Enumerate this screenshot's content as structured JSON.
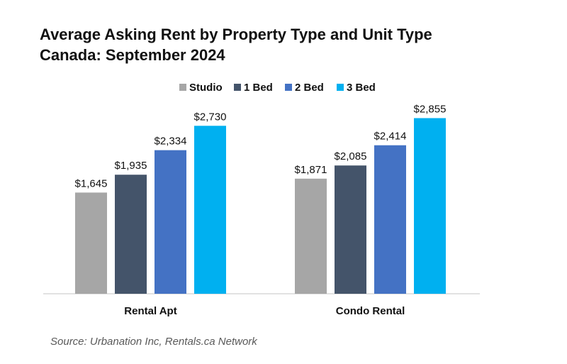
{
  "chart_data": {
    "type": "bar",
    "title": "Average Asking Rent by Property Type and Unit Type",
    "subtitle": "Canada: September 2024",
    "categories": [
      "Rental Apt",
      "Condo Rental"
    ],
    "series": [
      {
        "name": "Studio",
        "color": "#A6A6A6",
        "values": [
          1645,
          1871
        ],
        "labels": [
          "$1,645",
          "$1,871"
        ]
      },
      {
        "name": "1 Bed",
        "color": "#44546A",
        "values": [
          1935,
          2085
        ],
        "labels": [
          "$1,935",
          "$2,085"
        ]
      },
      {
        "name": "2 Bed",
        "color": "#4472C4",
        "values": [
          2334,
          2414
        ],
        "labels": [
          "$2,334",
          "$2,414"
        ]
      },
      {
        "name": "3 Bed",
        "color": "#00B0F0",
        "values": [
          2730,
          2855
        ],
        "labels": [
          "$2,730",
          "$2,855"
        ]
      }
    ],
    "ylim": [
      0,
      3000
    ],
    "xlabel": "",
    "ylabel": "",
    "grid": false,
    "legend": "top-center"
  },
  "source": "Source: Urbanation Inc, Rentals.ca Network"
}
